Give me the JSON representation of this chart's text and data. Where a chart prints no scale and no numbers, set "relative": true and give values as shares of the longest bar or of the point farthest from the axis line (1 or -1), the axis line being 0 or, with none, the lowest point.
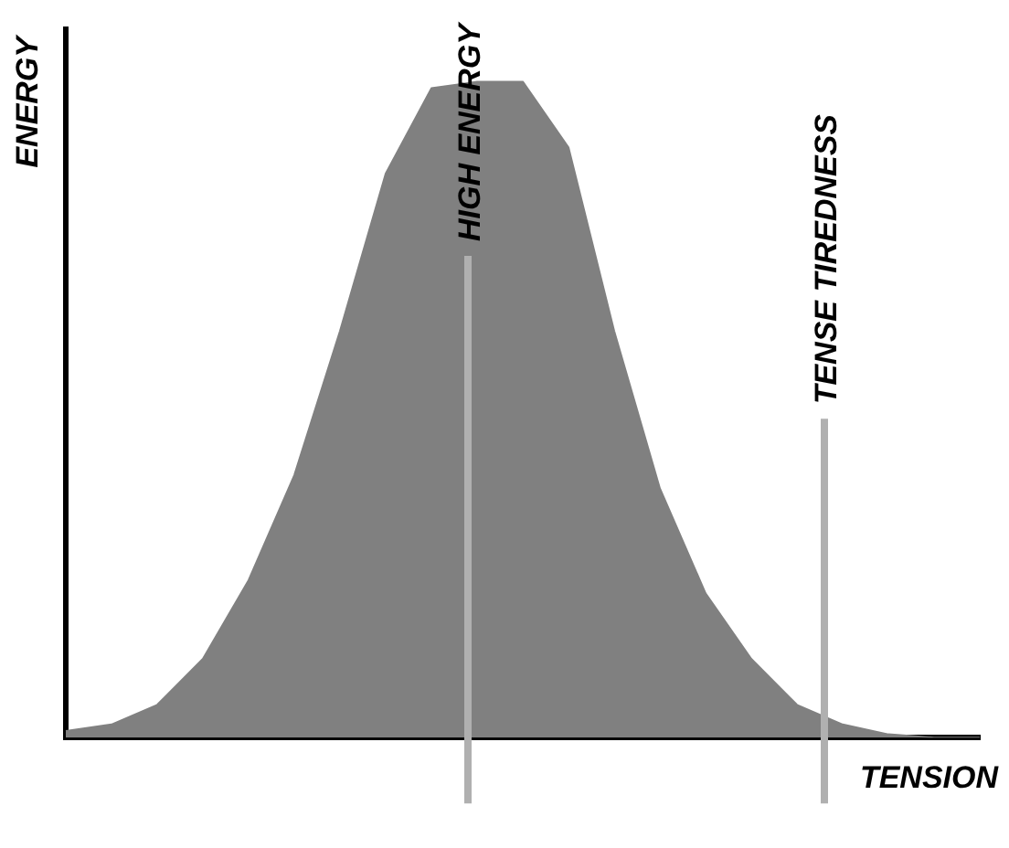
{
  "chart_data": {
    "type": "area",
    "relative": true,
    "xlabel": "TENSION",
    "ylabel": "ENERGY",
    "categories": [
      null,
      null,
      null,
      null,
      null,
      null,
      null,
      null,
      null,
      null,
      null,
      null,
      null,
      null,
      null,
      null,
      null,
      null,
      null,
      null,
      null
    ],
    "grid": false,
    "series": [
      {
        "color": "#808080",
        "values": [
          0.01,
          0.02,
          0.05,
          0.12,
          0.24,
          0.4,
          0.62,
          0.86,
          0.99,
          1,
          1,
          0.9,
          0.62,
          0.38,
          0.22,
          0.12,
          0.05,
          0.02,
          0.005,
          0,
          0
        ]
      }
    ],
    "annotations": [
      "HIGH ENERGY",
      "TENSE TIREDNESS"
    ]
  }
}
